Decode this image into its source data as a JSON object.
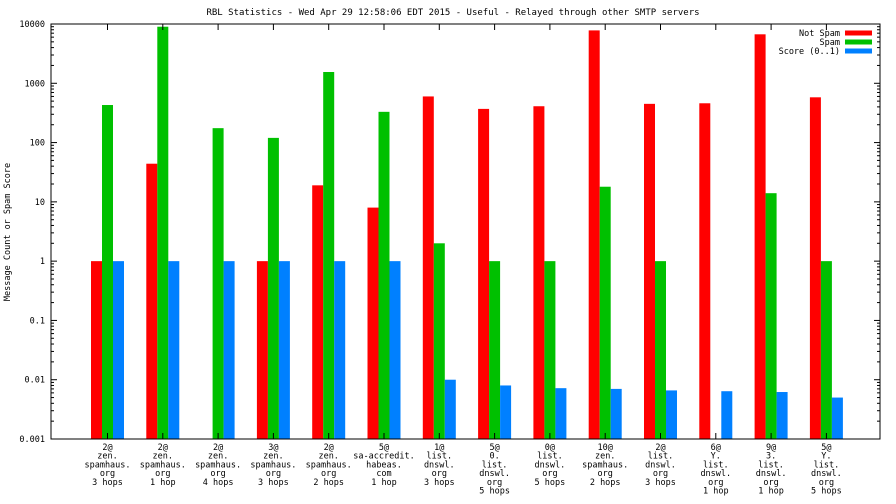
{
  "chart_data": {
    "type": "bar",
    "title": "RBL Statistics - Wed Apr 29 12:58:06 EDT 2015 - Useful - Relayed through other SMTP servers",
    "xlabel": "",
    "ylabel": "Message Count or Spam Score",
    "yscale": "log",
    "ylim": [
      0.001,
      10000
    ],
    "yticks": [
      "0.001",
      "0.01",
      "0.1",
      "1",
      "10",
      "100",
      "1000",
      "10000"
    ],
    "legend_position": "top-right",
    "grid": false,
    "categories": [
      [
        "2@",
        "zen.",
        "spamhaus.",
        "org",
        "3 hops"
      ],
      [
        "2@",
        "zen.",
        "spamhaus.",
        "org",
        "1 hop"
      ],
      [
        "2@",
        "zen.",
        "spamhaus.",
        "org",
        "4 hops"
      ],
      [
        "3@",
        "zen.",
        "spamhaus.",
        "org",
        "3 hops"
      ],
      [
        "2@",
        "zen.",
        "spamhaus.",
        "org",
        "2 hops"
      ],
      [
        "5@",
        "sa-accredit.",
        "habeas.",
        "com",
        "1 hop"
      ],
      [
        "1@",
        "list.",
        "dnswl.",
        "org",
        "3 hops"
      ],
      [
        "5@",
        "0.",
        "list.",
        "dnswl.",
        "org",
        "5 hops"
      ],
      [
        "0@",
        "list.",
        "dnswl.",
        "org",
        "5 hops"
      ],
      [
        "10@",
        "zen.",
        "spamhaus.",
        "org",
        "2 hops"
      ],
      [
        "2@",
        "list.",
        "dnswl.",
        "org",
        "3 hops"
      ],
      [
        "6@",
        "Y.",
        "list.",
        "dnswl.",
        "org",
        "1 hop"
      ],
      [
        "9@",
        "3.",
        "list.",
        "dnswl.",
        "org",
        "1 hop"
      ],
      [
        "5@",
        "Y.",
        "list.",
        "dnswl.",
        "org",
        "5 hops"
      ]
    ],
    "series": [
      {
        "name": "Not Spam",
        "color": "#ff0000",
        "values": [
          1,
          44,
          null,
          1,
          19,
          8,
          600,
          370,
          410,
          7800,
          450,
          460,
          6700,
          580
        ]
      },
      {
        "name": "Spam",
        "color": "#00c000",
        "values": [
          430,
          9000,
          175,
          120,
          1550,
          330,
          2,
          1,
          1,
          18,
          1,
          null,
          14,
          1
        ]
      },
      {
        "name": "Score (0..1)",
        "color": "#0080ff",
        "values": [
          1,
          1,
          1,
          1,
          1,
          1,
          0.01,
          0.008,
          0.0072,
          0.007,
          0.0066,
          0.0064,
          0.0062,
          0.005
        ]
      }
    ]
  }
}
